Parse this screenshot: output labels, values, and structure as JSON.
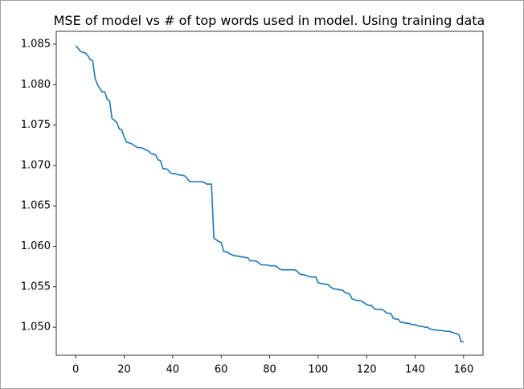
{
  "chart_data": {
    "type": "line",
    "title": "MSE of model vs # of top words used in model. Using training data",
    "color": "#1f77b4",
    "x": [
      0,
      1,
      2,
      3,
      4,
      5,
      6,
      7,
      8,
      9,
      10,
      11,
      12,
      13,
      14,
      15,
      16,
      17,
      18,
      19,
      20,
      21,
      22,
      23,
      24,
      25,
      26,
      27,
      28,
      29,
      30,
      31,
      32,
      33,
      34,
      35,
      36,
      37,
      38,
      39,
      40,
      41,
      42,
      43,
      44,
      45,
      46,
      47,
      48,
      49,
      50,
      51,
      52,
      53,
      54,
      55,
      56,
      57,
      58,
      59,
      60,
      61,
      62,
      63,
      64,
      65,
      66,
      67,
      68,
      69,
      70,
      71,
      72,
      73,
      74,
      75,
      76,
      77,
      78,
      79,
      80,
      81,
      82,
      83,
      84,
      85,
      86,
      87,
      88,
      89,
      90,
      91,
      92,
      93,
      94,
      95,
      96,
      97,
      98,
      99,
      100,
      101,
      102,
      103,
      104,
      105,
      106,
      107,
      108,
      109,
      110,
      111,
      112,
      113,
      114,
      115,
      116,
      117,
      118,
      119,
      120,
      121,
      122,
      123,
      124,
      125,
      126,
      127,
      128,
      129,
      130,
      131,
      132,
      133,
      134,
      135,
      136,
      137,
      138,
      139,
      140,
      141,
      142,
      143,
      144,
      145,
      146,
      147,
      148,
      149,
      150,
      151,
      152,
      153,
      154,
      155,
      156,
      157,
      158,
      159,
      160
    ],
    "values": [
      1.0848,
      1.0845,
      1.0841,
      1.084,
      1.0839,
      1.0836,
      1.0831,
      1.083,
      1.0808,
      1.08,
      1.0795,
      1.0791,
      1.0791,
      1.0782,
      1.078,
      1.0758,
      1.0756,
      1.0753,
      1.0745,
      1.0744,
      1.0735,
      1.0729,
      1.0728,
      1.0727,
      1.0725,
      1.0723,
      1.0722,
      1.0722,
      1.0721,
      1.0719,
      1.0718,
      1.0715,
      1.0714,
      1.0713,
      1.0707,
      1.0706,
      1.0696,
      1.0696,
      1.0695,
      1.0691,
      1.069,
      1.069,
      1.0689,
      1.0688,
      1.0688,
      1.0687,
      1.0684,
      1.068,
      1.068,
      1.068,
      1.068,
      1.068,
      1.068,
      1.0679,
      1.0677,
      1.0677,
      1.0677,
      1.061,
      1.0608,
      1.0606,
      1.0605,
      1.0594,
      1.0593,
      1.0592,
      1.059,
      1.0589,
      1.0588,
      1.0588,
      1.0587,
      1.0587,
      1.0586,
      1.0586,
      1.0582,
      1.0582,
      1.0582,
      1.0581,
      1.0578,
      1.0577,
      1.0577,
      1.0577,
      1.0576,
      1.0576,
      1.0576,
      1.0575,
      1.0572,
      1.0571,
      1.0571,
      1.0571,
      1.0571,
      1.0571,
      1.0571,
      1.057,
      1.0567,
      1.0565,
      1.0565,
      1.0564,
      1.0563,
      1.0562,
      1.0562,
      1.0562,
      1.0555,
      1.0554,
      1.0554,
      1.0553,
      1.0553,
      1.055,
      1.0548,
      1.0547,
      1.0547,
      1.0546,
      1.0546,
      1.0543,
      1.0542,
      1.0541,
      1.0535,
      1.0534,
      1.0533,
      1.0533,
      1.0532,
      1.053,
      1.0528,
      1.0527,
      1.0527,
      1.0523,
      1.0522,
      1.0522,
      1.0522,
      1.0521,
      1.0518,
      1.0517,
      1.0517,
      1.0511,
      1.051,
      1.051,
      1.0506,
      1.0506,
      1.0505,
      1.0505,
      1.0504,
      1.0503,
      1.0503,
      1.0502,
      1.0501,
      1.0501,
      1.05,
      1.05,
      1.0498,
      1.0497,
      1.0497,
      1.0496,
      1.0496,
      1.0496,
      1.0495,
      1.0495,
      1.0495,
      1.0494,
      1.0493,
      1.0492,
      1.0491,
      1.0482,
      1.0482
    ],
    "xlim": [
      -8,
      168
    ],
    "xticks": [
      0,
      20,
      40,
      60,
      80,
      100,
      120,
      140,
      160
    ],
    "ylim": [
      1.04653,
      1.08659
    ],
    "yticks": [
      {
        "value": 1.05,
        "label": "1.050"
      },
      1.055,
      {
        "value": 1.06,
        "label": "1.060"
      },
      1.065,
      {
        "value": 1.07,
        "label": "1.070"
      },
      1.075,
      {
        "value": 1.08,
        "label": "1.080"
      },
      1.085
    ]
  }
}
